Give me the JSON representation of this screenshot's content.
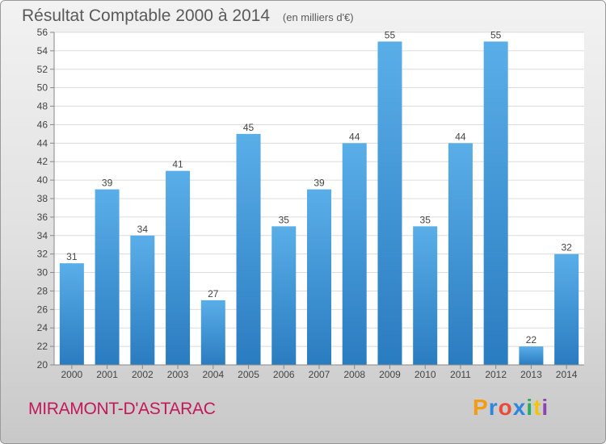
{
  "header": {
    "title": "Résultat Comptable 2000 à 2014",
    "subtitle": "(en milliers d'€)"
  },
  "footer": {
    "commune": "MIRAMONT-D'ASTARAC",
    "logo_letters": [
      "P",
      "r",
      "o",
      "x",
      "i",
      "t",
      "i"
    ],
    "logo_colors": [
      "#f39c12",
      "#2e86de",
      "#e74c3c",
      "#2e86de",
      "#27ae60",
      "#f1c40f",
      "#8e44ad"
    ]
  },
  "chart_data": {
    "type": "bar",
    "title": "Résultat Comptable 2000 à 2014",
    "subtitle": "(en milliers d'€)",
    "categories": [
      "2000",
      "2001",
      "2002",
      "2003",
      "2004",
      "2005",
      "2006",
      "2007",
      "2008",
      "2009",
      "2010",
      "2011",
      "2012",
      "2013",
      "2014"
    ],
    "values": [
      31,
      39,
      34,
      41,
      27,
      45,
      35,
      39,
      44,
      55,
      35,
      44,
      55,
      22,
      32
    ],
    "ylim": [
      20,
      56
    ],
    "yticks": [
      20,
      22,
      24,
      26,
      28,
      30,
      32,
      34,
      36,
      38,
      40,
      42,
      44,
      46,
      48,
      50,
      52,
      54,
      56
    ],
    "xlabel": "",
    "ylabel": "",
    "grid": true,
    "bar_color": "#3a8fd6"
  }
}
